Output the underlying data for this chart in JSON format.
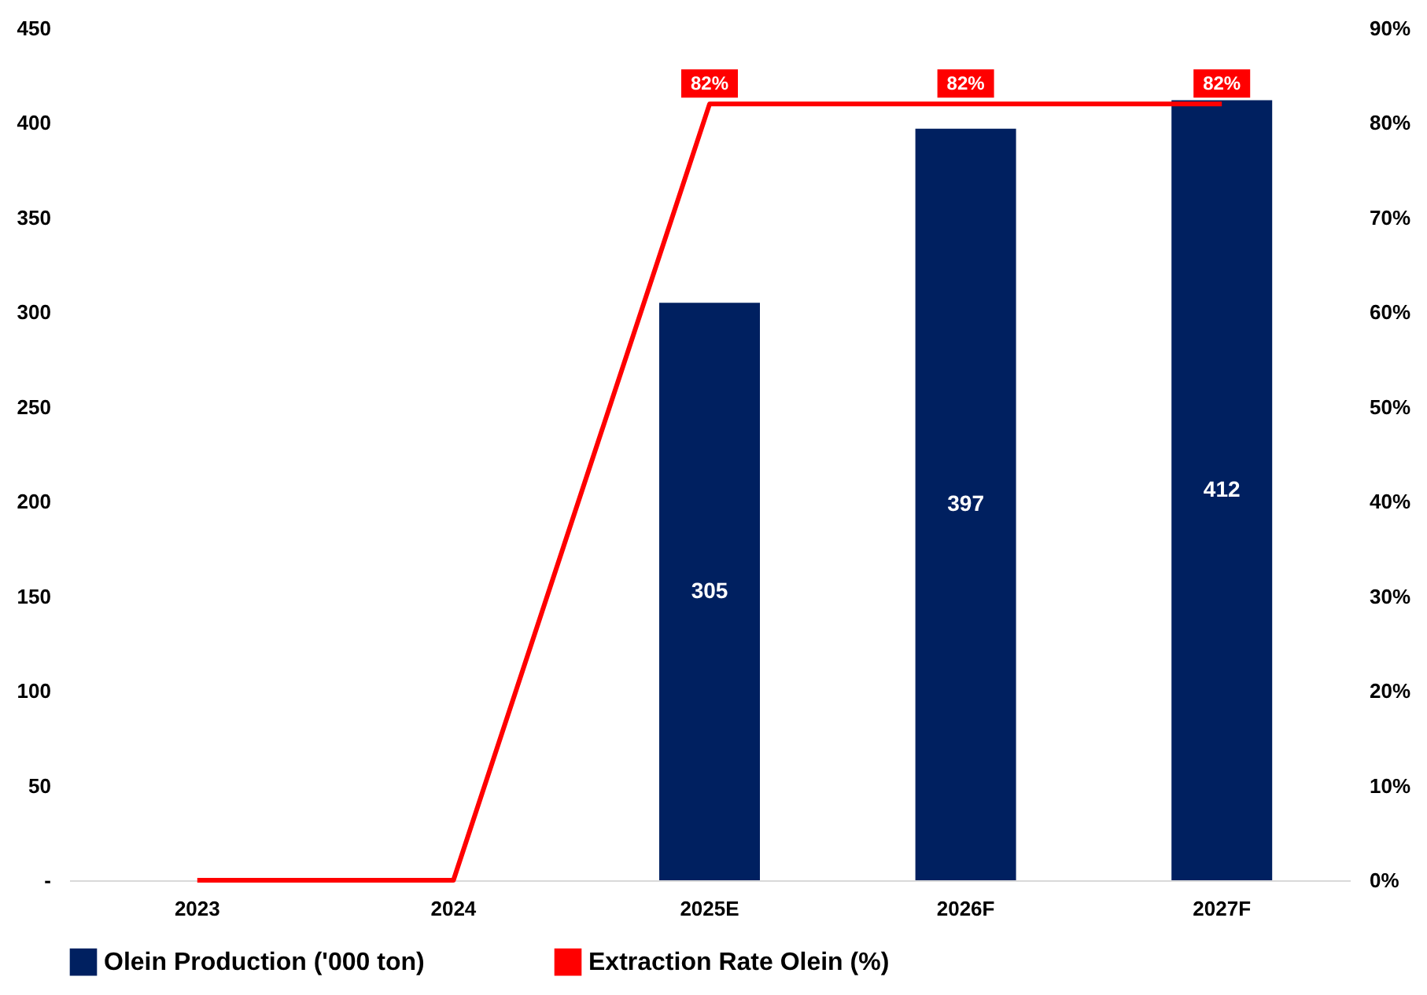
{
  "chart_data": {
    "type": "bar",
    "categories": [
      "2023",
      "2024",
      "2025E",
      "2026F",
      "2027F"
    ],
    "series": [
      {
        "name": "Olein Production ('000 ton)",
        "color": "#002060",
        "values": [
          null,
          null,
          305,
          397,
          412
        ],
        "value_labels": [
          null,
          null,
          "305",
          "397",
          "412"
        ]
      },
      {
        "name": "Extraction Rate Olein (%)",
        "type": "line",
        "axis": "y2",
        "color": "#ff0000",
        "values": [
          0,
          0,
          82,
          82,
          82
        ],
        "value_labels": [
          null,
          null,
          "82%",
          "82%",
          "82%"
        ]
      }
    ],
    "ylim": [
      0,
      450
    ],
    "yticks": [
      {
        "value": 0,
        "label": "-"
      },
      50,
      100,
      150,
      200,
      250,
      300,
      350,
      400,
      450
    ],
    "y2lim": [
      0,
      90
    ],
    "y2ticks": [
      {
        "value": 0,
        "label": "0%"
      },
      {
        "value": 10,
        "label": "10%"
      },
      {
        "value": 20,
        "label": "20%"
      },
      {
        "value": 30,
        "label": "30%"
      },
      {
        "value": 40,
        "label": "40%"
      },
      {
        "value": 50,
        "label": "50%"
      },
      {
        "value": 60,
        "label": "60%"
      },
      {
        "value": 70,
        "label": "70%"
      },
      {
        "value": 80,
        "label": "80%"
      },
      {
        "value": 90,
        "label": "90%"
      }
    ],
    "grid": false,
    "legend": "bottom",
    "line_style": "solid"
  }
}
